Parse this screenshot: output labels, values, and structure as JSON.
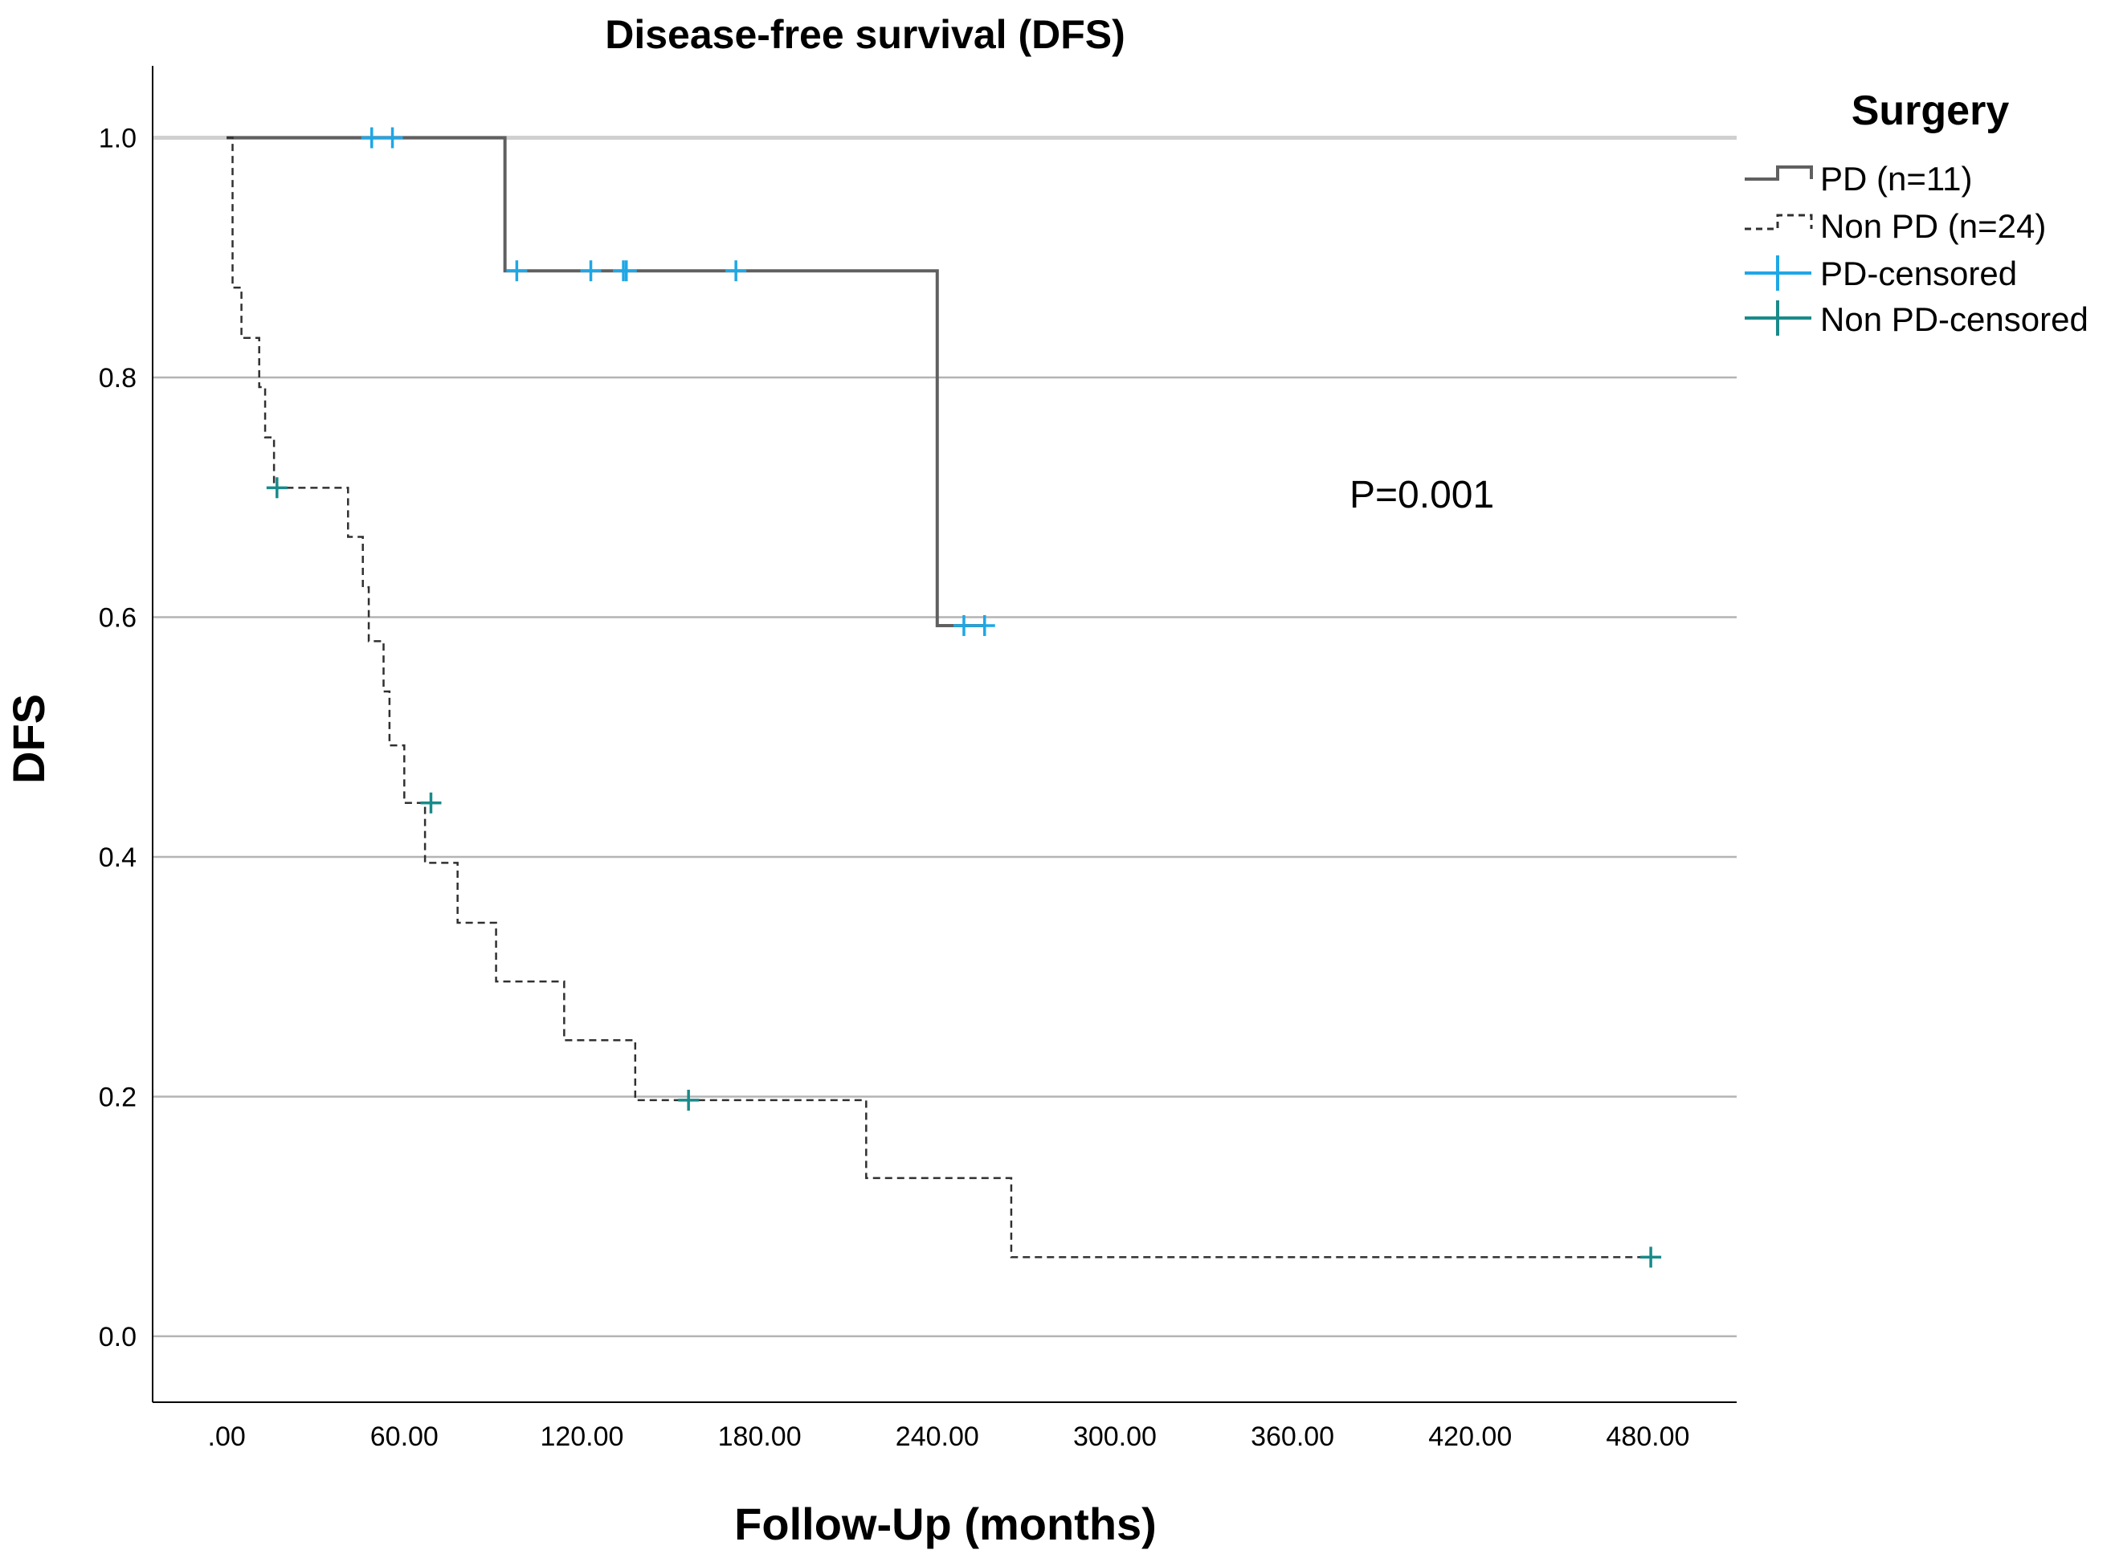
{
  "chart_data": {
    "type": "line",
    "title": "Disease-free survival (DFS)",
    "xlabel": "Follow-Up (months)",
    "ylabel": "DFS",
    "xlim": [
      -25,
      510
    ],
    "ylim": [
      -0.055,
      1.06
    ],
    "x_ticks": [
      0,
      60,
      120,
      180,
      240,
      300,
      360,
      420,
      480
    ],
    "x_tick_labels": [
      ".00",
      "60.00",
      "120.00",
      "180.00",
      "240.00",
      "300.00",
      "360.00",
      "420.00",
      "480.00"
    ],
    "y_ticks": [
      0,
      0.2,
      0.4,
      0.6,
      0.8,
      1.0
    ],
    "y_tick_labels": [
      "0.0",
      "0.2",
      "0.4",
      "0.6",
      "0.8",
      "1.0"
    ],
    "grid": "horizontal",
    "legend": {
      "title": "Surgery",
      "placement": "right",
      "entries": [
        "PD (n=11)",
        "Non PD (n=24)",
        "PD-censored",
        "Non PD-censored"
      ]
    },
    "annotation": "P=0.001",
    "series": [
      {
        "name": "PD (n=11)",
        "style": "solid",
        "color": "#606060",
        "steps": [
          [
            0,
            1.0
          ],
          [
            94,
            0.889
          ],
          [
            240,
            0.593
          ],
          [
            256,
            0.593
          ]
        ],
        "censor_color": "#1ea7e6",
        "censored": [
          [
            49,
            1.0
          ],
          [
            56,
            1.0
          ],
          [
            98,
            0.889
          ],
          [
            123,
            0.889
          ],
          [
            134,
            0.889
          ],
          [
            135,
            0.889
          ],
          [
            172,
            0.889
          ],
          [
            249,
            0.593
          ],
          [
            256,
            0.593
          ]
        ]
      },
      {
        "name": "Non PD (n=24)",
        "style": "dashed",
        "color": "#303030",
        "steps": [
          [
            0,
            1.0
          ],
          [
            2,
            0.875
          ],
          [
            5,
            0.833
          ],
          [
            11,
            0.792
          ],
          [
            13,
            0.75
          ],
          [
            16,
            0.708
          ],
          [
            41,
            0.667
          ],
          [
            46,
            0.625
          ],
          [
            48,
            0.58
          ],
          [
            53,
            0.538
          ],
          [
            55,
            0.493
          ],
          [
            60,
            0.445
          ],
          [
            67,
            0.395
          ],
          [
            78,
            0.345
          ],
          [
            91,
            0.296
          ],
          [
            114,
            0.247
          ],
          [
            138,
            0.197
          ],
          [
            216,
            0.132
          ],
          [
            265,
            0.066
          ],
          [
            480,
            0.066
          ]
        ],
        "censor_color": "#1a8a8a",
        "censored": [
          [
            17,
            0.708
          ],
          [
            69,
            0.445
          ],
          [
            156,
            0.197
          ],
          [
            481,
            0.066
          ]
        ]
      }
    ]
  }
}
